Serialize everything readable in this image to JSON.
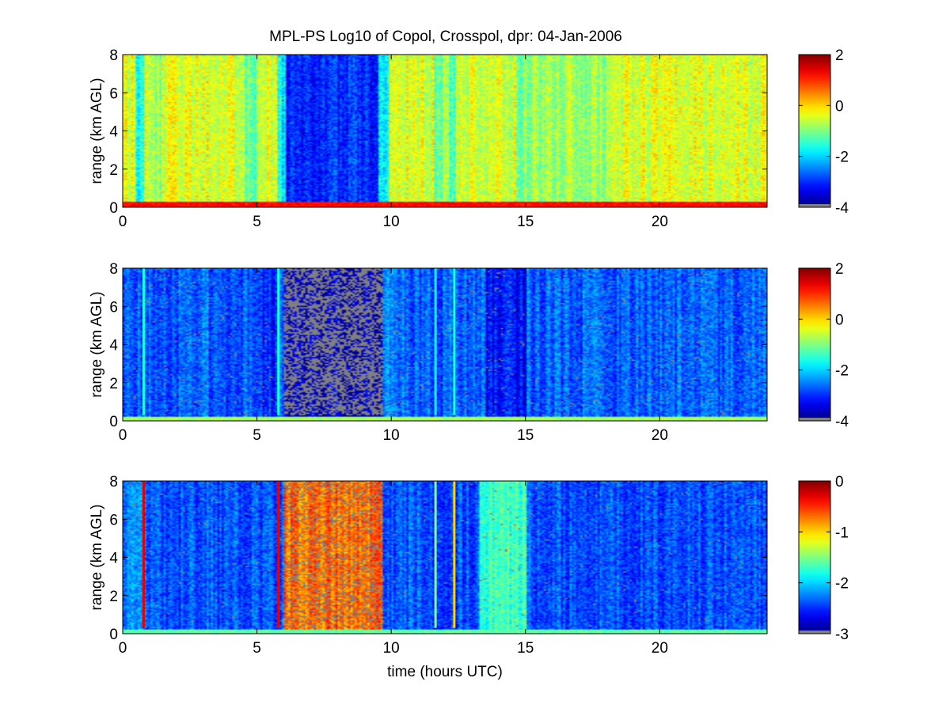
{
  "title": "MPL-PS Log10 of Copol, Crosspol, dpr: 04-Jan-2006",
  "chart_data": [
    {
      "type": "heatmap",
      "panel": "copol",
      "ylabel": "range (km AGL)",
      "xlabel": "",
      "xlim": [
        0,
        24
      ],
      "ylim": [
        0,
        8
      ],
      "xticks": [
        "0",
        "5",
        "10",
        "15",
        "20"
      ],
      "yticks": [
        "0",
        "2",
        "4",
        "6",
        "8"
      ],
      "clim": [
        -4,
        2
      ],
      "cticks": [
        "-4",
        "-2",
        "0",
        "2"
      ],
      "colormap": "jet",
      "base_value": -0.45,
      "gray_fraction": 0,
      "features": [
        {
          "t0": 6.1,
          "t1": 9.5,
          "value": -3.0
        },
        {
          "t0": 5.8,
          "t1": 6.1,
          "value": -1.8
        },
        {
          "t0": 9.5,
          "t1": 9.9,
          "value": -1.8
        },
        {
          "t0": 0.45,
          "t1": 0.8,
          "value": -1.6
        },
        {
          "t0": 4.6,
          "t1": 5.0,
          "value": -1.1
        },
        {
          "t0": 14.6,
          "t1": 15.2,
          "value": -1.0
        },
        {
          "t0": 15.2,
          "t1": 18.0,
          "value": -0.8
        },
        {
          "t0": 11.6,
          "t1": 11.9,
          "value": -1.2
        },
        {
          "t0": 12.2,
          "t1": 12.4,
          "value": -1.4
        },
        {
          "t0": 1.0,
          "t1": 1.4,
          "value": -0.9
        }
      ],
      "surface_layer": {
        "height_km": 0.3,
        "value": 1.2
      }
    },
    {
      "type": "heatmap",
      "panel": "crosspol",
      "ylabel": "range (km AGL)",
      "xlabel": "",
      "xlim": [
        0,
        24
      ],
      "ylim": [
        0,
        8
      ],
      "xticks": [
        "0",
        "5",
        "10",
        "15",
        "20"
      ],
      "yticks": [
        "0",
        "2",
        "4",
        "6",
        "8"
      ],
      "clim": [
        -4,
        2
      ],
      "cticks": [
        "-4",
        "-2",
        "0",
        "2"
      ],
      "colormap": "jet",
      "base_value": -2.7,
      "gray_fraction": 0.02,
      "features": [
        {
          "t0": 6.0,
          "t1": 9.7,
          "value": -3.6,
          "gray_fraction": 0.55
        },
        {
          "t0": 5.2,
          "t1": 5.8,
          "value": -3.1
        },
        {
          "t0": 13.5,
          "t1": 15.0,
          "value": -3.2
        },
        {
          "t0": 9.7,
          "t1": 10.2,
          "value": -2.4
        }
      ],
      "vertical_lines": [
        {
          "t": 0.78,
          "value": -1.6
        },
        {
          "t": 5.8,
          "value": -1.6
        },
        {
          "t": 11.65,
          "value": -1.8
        },
        {
          "t": 12.35,
          "value": -1.6
        }
      ],
      "surface_layer": {
        "height_km": 0.25,
        "value": -0.8
      }
    },
    {
      "type": "heatmap",
      "panel": "dpr",
      "ylabel": "range (km AGL)",
      "xlabel": "time (hours UTC)",
      "xlim": [
        0,
        24
      ],
      "ylim": [
        0,
        8
      ],
      "xticks": [
        "0",
        "5",
        "10",
        "15",
        "20"
      ],
      "yticks": [
        "0",
        "2",
        "4",
        "6",
        "8"
      ],
      "clim": [
        -3,
        0
      ],
      "cticks": [
        "-3",
        "-2",
        "-1",
        "0"
      ],
      "colormap": "jet",
      "base_value": -2.4,
      "gray_fraction": 0.01,
      "features": [
        {
          "t0": 6.0,
          "t1": 9.7,
          "value": -0.7,
          "gray_fraction": 0.22
        },
        {
          "t0": 13.3,
          "t1": 15.0,
          "value": -1.7
        },
        {
          "t0": 0.0,
          "t1": 0.9,
          "value": -2.2
        }
      ],
      "vertical_lines": [
        {
          "t": 0.78,
          "value": -0.3
        },
        {
          "t": 5.8,
          "value": -0.3
        },
        {
          "t": 11.65,
          "value": -1.5
        },
        {
          "t": 12.35,
          "value": -1.0
        }
      ],
      "surface_layer": {
        "height_km": 0.2,
        "value": -1.6
      }
    }
  ]
}
